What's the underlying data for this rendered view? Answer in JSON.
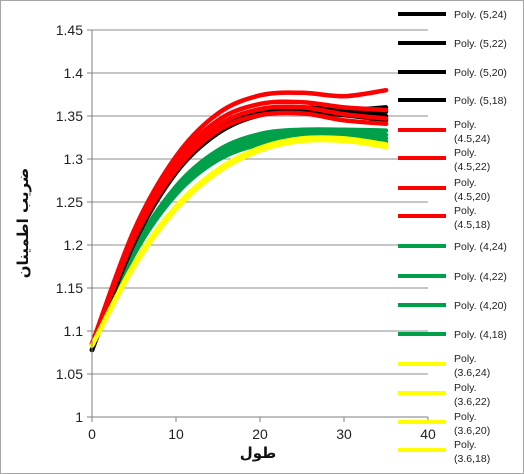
{
  "chart_data": {
    "type": "line",
    "title": "",
    "xlabel": "طول",
    "ylabel": "ضریب اطمینان",
    "xlim": [
      0,
      40
    ],
    "ylim": [
      1,
      1.45
    ],
    "x_ticks": [
      0,
      10,
      20,
      30,
      40
    ],
    "y_ticks": [
      1,
      1.05,
      1.1,
      1.15,
      1.2,
      1.25,
      1.3,
      1.35,
      1.4,
      1.45
    ],
    "grid": "horizontal",
    "legend_position": "right",
    "x": [
      0,
      5,
      10,
      15,
      20,
      25,
      30,
      35
    ],
    "series": [
      {
        "name": "Poly. (5,24)",
        "color": "#000000",
        "values": [
          1.078,
          1.208,
          1.29,
          1.336,
          1.357,
          1.36,
          1.357,
          1.36
        ]
      },
      {
        "name": "Poly. (5,22)",
        "color": "#000000",
        "values": [
          1.078,
          1.206,
          1.288,
          1.334,
          1.355,
          1.358,
          1.355,
          1.355
        ]
      },
      {
        "name": "Poly. (5,20)",
        "color": "#000000",
        "values": [
          1.078,
          1.204,
          1.286,
          1.332,
          1.353,
          1.356,
          1.353,
          1.35
        ]
      },
      {
        "name": "Poly. (5,18)",
        "color": "#000000",
        "values": [
          1.078,
          1.202,
          1.284,
          1.33,
          1.351,
          1.354,
          1.351,
          1.345
        ]
      },
      {
        "name": "Poly. (4.5,24)",
        "color": "#ff0000",
        "values": [
          1.085,
          1.217,
          1.303,
          1.353,
          1.374,
          1.377,
          1.373,
          1.38
        ]
      },
      {
        "name": "Poly. (4.5,22)",
        "color": "#ff0000",
        "values": [
          1.085,
          1.213,
          1.297,
          1.345,
          1.364,
          1.366,
          1.36,
          1.357
        ]
      },
      {
        "name": "Poly. (4.5,20)",
        "color": "#ff0000",
        "values": [
          1.085,
          1.21,
          1.292,
          1.339,
          1.358,
          1.36,
          1.352,
          1.347
        ]
      },
      {
        "name": "Poly. (4.5,18)",
        "color": "#ff0000",
        "values": [
          1.085,
          1.207,
          1.287,
          1.333,
          1.351,
          1.353,
          1.345,
          1.341
        ]
      },
      {
        "name": "Poly. (4,24)",
        "color": "#00a04a",
        "values": [
          1.083,
          1.195,
          1.268,
          1.31,
          1.329,
          1.334,
          1.334,
          1.333
        ]
      },
      {
        "name": "Poly. (4,22)",
        "color": "#00a04a",
        "values": [
          1.083,
          1.193,
          1.265,
          1.306,
          1.325,
          1.33,
          1.33,
          1.328
        ]
      },
      {
        "name": "Poly. (4,20)",
        "color": "#00a04a",
        "values": [
          1.083,
          1.191,
          1.262,
          1.303,
          1.321,
          1.326,
          1.326,
          1.324
        ]
      },
      {
        "name": "Poly. (4,18)",
        "color": "#00a04a",
        "values": [
          1.083,
          1.189,
          1.259,
          1.299,
          1.317,
          1.322,
          1.322,
          1.32
        ]
      },
      {
        "name": "Poly. (3.6,24)",
        "color": "#ffff00",
        "values": [
          1.083,
          1.178,
          1.245,
          1.288,
          1.313,
          1.324,
          1.324,
          1.317
        ]
      },
      {
        "name": "Poly. (3.6,22)",
        "color": "#ffff00",
        "values": [
          1.083,
          1.177,
          1.244,
          1.287,
          1.312,
          1.323,
          1.323,
          1.316
        ]
      },
      {
        "name": "Poly. (3.6,20)",
        "color": "#ffff00",
        "values": [
          1.083,
          1.176,
          1.243,
          1.286,
          1.311,
          1.322,
          1.322,
          1.315
        ]
      },
      {
        "name": "Poly. (3.6,18)",
        "color": "#ffff00",
        "values": [
          1.083,
          1.175,
          1.242,
          1.285,
          1.31,
          1.321,
          1.321,
          1.314
        ]
      }
    ]
  }
}
